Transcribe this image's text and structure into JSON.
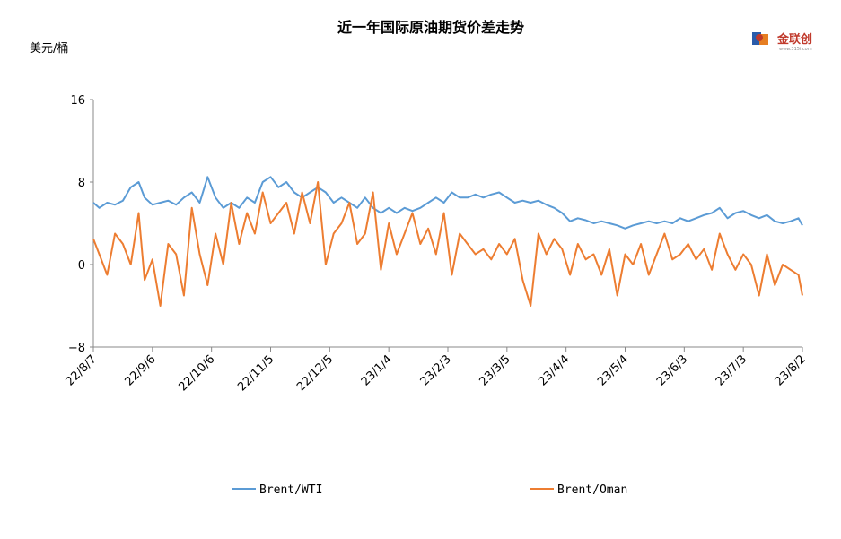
{
  "chart_data": {
    "type": "line",
    "title": "近一年国际原油期货价差走势",
    "unit_label": "美元/桶",
    "ylim": [
      -8,
      16
    ],
    "yticks": [
      "16",
      "8",
      "0",
      "−8"
    ],
    "yticks_values": [
      16,
      8,
      0,
      -8
    ],
    "xlim": [
      "2022-08-07",
      "2023-08-02"
    ],
    "xticks": [
      "22/8/7",
      "22/9/6",
      "22/10/6",
      "22/11/5",
      "22/12/5",
      "23/1/4",
      "23/2/3",
      "23/3/5",
      "23/4/4",
      "23/5/4",
      "23/6/3",
      "23/7/3",
      "23/8/2"
    ],
    "xticks_dates": [
      "2022-08-07",
      "2022-09-06",
      "2022-10-06",
      "2022-11-05",
      "2022-12-05",
      "2023-01-04",
      "2023-02-03",
      "2023-03-05",
      "2023-04-04",
      "2023-05-04",
      "2023-06-03",
      "2023-07-03",
      "2023-08-02"
    ],
    "grid": false,
    "legend_position": "bottom",
    "series": [
      {
        "name": "Brent/WTI",
        "color": "#5b9bd5",
        "x": [
          "2022-08-07",
          "2022-08-10",
          "2022-08-14",
          "2022-08-18",
          "2022-08-22",
          "2022-08-26",
          "2022-08-30",
          "2022-09-02",
          "2022-09-06",
          "2022-09-10",
          "2022-09-14",
          "2022-09-18",
          "2022-09-22",
          "2022-09-26",
          "2022-09-30",
          "2022-10-04",
          "2022-10-08",
          "2022-10-12",
          "2022-10-16",
          "2022-10-20",
          "2022-10-24",
          "2022-10-28",
          "2022-11-01",
          "2022-11-05",
          "2022-11-09",
          "2022-11-13",
          "2022-11-17",
          "2022-11-21",
          "2022-11-25",
          "2022-11-29",
          "2022-12-03",
          "2022-12-07",
          "2022-12-11",
          "2022-12-15",
          "2022-12-19",
          "2022-12-23",
          "2022-12-27",
          "2022-12-31",
          "2023-01-04",
          "2023-01-08",
          "2023-01-12",
          "2023-01-16",
          "2023-01-20",
          "2023-01-24",
          "2023-01-28",
          "2023-02-01",
          "2023-02-05",
          "2023-02-09",
          "2023-02-13",
          "2023-02-17",
          "2023-02-21",
          "2023-02-25",
          "2023-03-01",
          "2023-03-05",
          "2023-03-09",
          "2023-03-13",
          "2023-03-17",
          "2023-03-21",
          "2023-03-25",
          "2023-03-29",
          "2023-04-02",
          "2023-04-06",
          "2023-04-10",
          "2023-04-14",
          "2023-04-18",
          "2023-04-22",
          "2023-04-26",
          "2023-04-30",
          "2023-05-04",
          "2023-05-08",
          "2023-05-12",
          "2023-05-16",
          "2023-05-20",
          "2023-05-24",
          "2023-05-28",
          "2023-06-01",
          "2023-06-05",
          "2023-06-09",
          "2023-06-13",
          "2023-06-17",
          "2023-06-21",
          "2023-06-25",
          "2023-06-29",
          "2023-07-03",
          "2023-07-07",
          "2023-07-11",
          "2023-07-15",
          "2023-07-19",
          "2023-07-23",
          "2023-07-27",
          "2023-07-31",
          "2023-08-02"
        ],
        "y": [
          6.0,
          5.5,
          6.0,
          5.8,
          6.2,
          7.5,
          8.0,
          6.5,
          5.8,
          6.0,
          6.2,
          5.8,
          6.5,
          7.0,
          6.0,
          8.5,
          6.5,
          5.5,
          6.0,
          5.5,
          6.5,
          6.0,
          8.0,
          8.5,
          7.5,
          8.0,
          7.0,
          6.5,
          7.0,
          7.5,
          7.0,
          6.0,
          6.5,
          6.0,
          5.5,
          6.5,
          5.5,
          5.0,
          5.5,
          5.0,
          5.5,
          5.2,
          5.5,
          6.0,
          6.5,
          6.0,
          7.0,
          6.5,
          6.5,
          6.8,
          6.5,
          6.8,
          7.0,
          6.5,
          6.0,
          6.2,
          6.0,
          6.2,
          5.8,
          5.5,
          5.0,
          4.2,
          4.5,
          4.3,
          4.0,
          4.2,
          4.0,
          3.8,
          3.5,
          3.8,
          4.0,
          4.2,
          4.0,
          4.2,
          4.0,
          4.5,
          4.2,
          4.5,
          4.8,
          5.0,
          5.5,
          4.5,
          5.0,
          5.2,
          4.8,
          4.5,
          4.8,
          4.2,
          4.0,
          4.2,
          4.5,
          3.8
        ]
      },
      {
        "name": "Brent/Oman",
        "color": "#ed7d31",
        "x": [
          "2022-08-07",
          "2022-08-10",
          "2022-08-14",
          "2022-08-18",
          "2022-08-22",
          "2022-08-26",
          "2022-08-30",
          "2022-09-02",
          "2022-09-06",
          "2022-09-10",
          "2022-09-14",
          "2022-09-18",
          "2022-09-22",
          "2022-09-26",
          "2022-09-30",
          "2022-10-04",
          "2022-10-08",
          "2022-10-12",
          "2022-10-16",
          "2022-10-20",
          "2022-10-24",
          "2022-10-28",
          "2022-11-01",
          "2022-11-05",
          "2022-11-09",
          "2022-11-13",
          "2022-11-17",
          "2022-11-21",
          "2022-11-25",
          "2022-11-29",
          "2022-12-03",
          "2022-12-07",
          "2022-12-11",
          "2022-12-15",
          "2022-12-19",
          "2022-12-23",
          "2022-12-27",
          "2022-12-31",
          "2023-01-04",
          "2023-01-08",
          "2023-01-12",
          "2023-01-16",
          "2023-01-20",
          "2023-01-24",
          "2023-01-28",
          "2023-02-01",
          "2023-02-05",
          "2023-02-09",
          "2023-02-13",
          "2023-02-17",
          "2023-02-21",
          "2023-02-25",
          "2023-03-01",
          "2023-03-05",
          "2023-03-09",
          "2023-03-13",
          "2023-03-17",
          "2023-03-21",
          "2023-03-25",
          "2023-03-29",
          "2023-04-02",
          "2023-04-06",
          "2023-04-10",
          "2023-04-14",
          "2023-04-18",
          "2023-04-22",
          "2023-04-26",
          "2023-04-30",
          "2023-05-04",
          "2023-05-08",
          "2023-05-12",
          "2023-05-16",
          "2023-05-20",
          "2023-05-24",
          "2023-05-28",
          "2023-06-01",
          "2023-06-05",
          "2023-06-09",
          "2023-06-13",
          "2023-06-17",
          "2023-06-21",
          "2023-06-25",
          "2023-06-29",
          "2023-07-03",
          "2023-07-07",
          "2023-07-11",
          "2023-07-15",
          "2023-07-19",
          "2023-07-23",
          "2023-07-27",
          "2023-07-31",
          "2023-08-02"
        ],
        "y": [
          2.5,
          1.0,
          -1.0,
          3.0,
          2.0,
          0.0,
          5.0,
          -1.5,
          0.5,
          -4.0,
          2.0,
          1.0,
          -3.0,
          5.5,
          1.0,
          -2.0,
          3.0,
          0.0,
          6.0,
          2.0,
          5.0,
          3.0,
          7.0,
          4.0,
          5.0,
          6.0,
          3.0,
          7.0,
          4.0,
          8.0,
          0.0,
          3.0,
          4.0,
          6.0,
          2.0,
          3.0,
          7.0,
          -0.5,
          4.0,
          1.0,
          3.0,
          5.0,
          2.0,
          3.5,
          1.0,
          5.0,
          -1.0,
          3.0,
          2.0,
          1.0,
          1.5,
          0.5,
          2.0,
          1.0,
          2.5,
          -1.5,
          -4.0,
          3.0,
          1.0,
          2.5,
          1.5,
          -1.0,
          2.0,
          0.5,
          1.0,
          -1.0,
          1.5,
          -3.0,
          1.0,
          0.0,
          2.0,
          -1.0,
          1.0,
          3.0,
          0.5,
          1.0,
          2.0,
          0.5,
          1.5,
          -0.5,
          3.0,
          1.0,
          -0.5,
          1.0,
          0.0,
          -3.0,
          1.0,
          -2.0,
          0.0,
          -0.5,
          -1.0,
          -3.0
        ]
      }
    ]
  },
  "logo": {
    "text": "金联创",
    "sub": "www.315i.com"
  }
}
